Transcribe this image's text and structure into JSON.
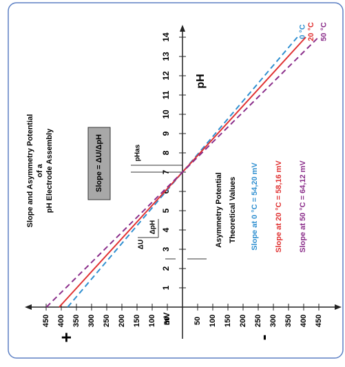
{
  "chart_data": {
    "type": "line",
    "title": [
      "Slope and Asymmetry Potential",
      "of a",
      "pH Electrode Assembly"
    ],
    "x_label": "pH",
    "y_label": "mV",
    "positive_sign": "+",
    "negative_sign": "-",
    "box_label": "Slope = ΔU/ΔpH",
    "ph_as_label": "pHas",
    "delta_u_label": "ΔU",
    "delta_ph_label": "ΔpH",
    "annotation": [
      "Asymmetry Potential",
      "Theoretical Values"
    ],
    "x": [
      0,
      14
    ],
    "xlim": [
      0,
      14
    ],
    "xticks": [
      1,
      2,
      3,
      4,
      5,
      6,
      7,
      8,
      9,
      10,
      11,
      12,
      13,
      14
    ],
    "ylim": [
      -450,
      450
    ],
    "yticks": [
      450,
      400,
      350,
      300,
      250,
      200,
      150,
      100,
      50,
      {
        "value": -50,
        "label": "50"
      },
      {
        "value": -100,
        "label": "100"
      },
      {
        "value": -150,
        "label": "150"
      },
      {
        "value": -200,
        "label": "200"
      },
      {
        "value": -250,
        "label": "250"
      },
      {
        "value": -300,
        "label": "300"
      },
      {
        "value": -350,
        "label": "350"
      },
      {
        "value": -400,
        "label": "400"
      },
      {
        "value": -450,
        "label": "450"
      }
    ],
    "series": [
      {
        "name": "0 °C",
        "color": "#2f8fd0",
        "dashed": true,
        "values": [
          379,
          -379
        ],
        "slope_label": "Slope at  0 °C = 54,20 mV"
      },
      {
        "name": "20 °C",
        "color": "#e03131",
        "dashed": false,
        "values": [
          407,
          -407
        ],
        "slope_label": "Slope at 20 °C = 58,16 mV"
      },
      {
        "name": "50 °C",
        "color": "#8a2d8a",
        "dashed": true,
        "values": [
          449,
          -449
        ],
        "slope_label": "Slope at 50 °C = 64,12 mV"
      }
    ]
  }
}
